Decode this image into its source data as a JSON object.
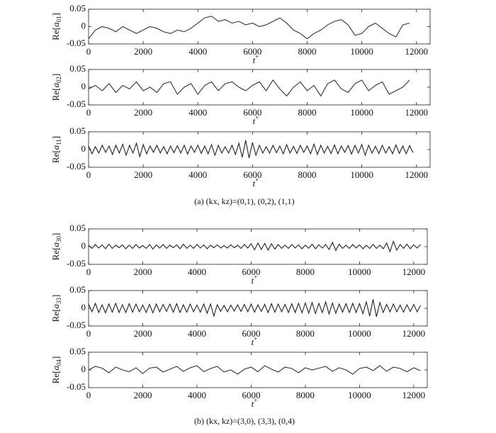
{
  "captions": [
    "(a) (kx, kz)=(0,1), (0,2), (1,1)",
    "(b) (kx, kz)=(3,0), (3,3), (0,4)"
  ],
  "chart_data": [
    {
      "type": "line",
      "ylabel": [
        "Re[",
        "a",
        "01",
        "]"
      ],
      "xlabel": [
        "t",
        "+"
      ],
      "color": "#333333",
      "xlim": [
        0,
        12500
      ],
      "ylim": [
        -0.05,
        0.05
      ],
      "xticks": [
        0,
        2000,
        4000,
        6000,
        8000,
        10000,
        12000
      ],
      "yticks": [
        -0.05,
        0,
        0.05
      ],
      "x": [
        0,
        250,
        500,
        750,
        1000,
        1250,
        1500,
        1750,
        2000,
        2250,
        2500,
        2750,
        3000,
        3250,
        3500,
        3750,
        4000,
        4250,
        4500,
        4750,
        5000,
        5250,
        5500,
        5750,
        6000,
        6250,
        6500,
        6750,
        7000,
        7250,
        7500,
        7750,
        8000,
        8250,
        8500,
        8750,
        9000,
        9250,
        9500,
        9750,
        10000,
        10250,
        10500,
        10750,
        11000,
        11250,
        11500,
        11750
      ],
      "values": [
        -0.035,
        -0.01,
        0.0,
        -0.005,
        -0.015,
        0.0,
        -0.01,
        -0.02,
        -0.01,
        0.0,
        -0.005,
        -0.015,
        -0.02,
        -0.01,
        -0.015,
        -0.005,
        0.01,
        0.025,
        0.03,
        0.015,
        0.02,
        0.01,
        0.015,
        0.005,
        0.01,
        0.0,
        0.005,
        0.015,
        0.025,
        0.01,
        -0.01,
        -0.02,
        -0.035,
        -0.02,
        -0.01,
        0.005,
        0.015,
        0.02,
        0.005,
        -0.025,
        -0.02,
        0.0,
        0.01,
        -0.005,
        -0.02,
        -0.03,
        0.005,
        0.01
      ]
    },
    {
      "type": "line",
      "ylabel": [
        "Re[",
        "a",
        "02",
        "]"
      ],
      "xlabel": [
        "t",
        "+"
      ],
      "color": "#333333",
      "xlim": [
        0,
        12500
      ],
      "ylim": [
        -0.05,
        0.05
      ],
      "xticks": [
        0,
        2000,
        4000,
        6000,
        8000,
        10000,
        12000
      ],
      "yticks": [
        -0.05,
        0,
        0.05
      ],
      "x": [
        0,
        250,
        500,
        750,
        1000,
        1250,
        1500,
        1750,
        2000,
        2250,
        2500,
        2750,
        3000,
        3250,
        3500,
        3750,
        4000,
        4250,
        4500,
        4750,
        5000,
        5250,
        5500,
        5750,
        6000,
        6250,
        6500,
        6750,
        7000,
        7250,
        7500,
        7750,
        8000,
        8250,
        8500,
        8750,
        9000,
        9250,
        9500,
        9750,
        10000,
        10250,
        10500,
        10750,
        11000,
        11250,
        11500,
        11750
      ],
      "values": [
        -0.005,
        0.005,
        -0.01,
        0.01,
        -0.015,
        0.005,
        -0.005,
        0.015,
        -0.01,
        0.0,
        -0.015,
        0.01,
        0.015,
        -0.02,
        0.0,
        0.01,
        -0.02,
        0.005,
        0.015,
        -0.01,
        0.01,
        0.015,
        0.0,
        -0.01,
        0.005,
        0.015,
        -0.01,
        0.02,
        -0.005,
        -0.025,
        0.0,
        0.015,
        -0.01,
        0.005,
        -0.025,
        0.01,
        0.02,
        -0.005,
        -0.015,
        0.01,
        0.02,
        -0.01,
        0.005,
        0.015,
        -0.02,
        -0.01,
        0.0,
        0.02
      ]
    },
    {
      "type": "line",
      "ylabel": [
        "Re[",
        "a",
        "11",
        "]"
      ],
      "xlabel": [
        "t",
        "+"
      ],
      "color": "#222222",
      "xlim": [
        0,
        12500
      ],
      "ylim": [
        -0.05,
        0.05
      ],
      "xticks": [
        0,
        2000,
        4000,
        6000,
        8000,
        10000,
        12000
      ],
      "yticks": [
        -0.05,
        0,
        0.05
      ],
      "x": [
        0,
        125,
        250,
        375,
        500,
        625,
        750,
        875,
        1000,
        1125,
        1250,
        1375,
        1500,
        1625,
        1750,
        1875,
        2000,
        2125,
        2250,
        2375,
        2500,
        2625,
        2750,
        2875,
        3000,
        3125,
        3250,
        3375,
        3500,
        3625,
        3750,
        3875,
        4000,
        4125,
        4250,
        4375,
        4500,
        4625,
        4750,
        4875,
        5000,
        5125,
        5250,
        5375,
        5500,
        5625,
        5750,
        5875,
        6000,
        6125,
        6250,
        6375,
        6500,
        6625,
        6750,
        6875,
        7000,
        7125,
        7250,
        7375,
        7500,
        7625,
        7750,
        7875,
        8000,
        8125,
        8250,
        8375,
        8500,
        8625,
        8750,
        8875,
        9000,
        9125,
        9250,
        9375,
        9500,
        9625,
        9750,
        9875,
        10000,
        10125,
        10250,
        10375,
        10500,
        10625,
        10750,
        10875,
        11000,
        11125,
        11250,
        11375,
        11500,
        11625,
        11750,
        11875
      ],
      "values": [
        0.01,
        -0.012,
        0.008,
        -0.01,
        0.012,
        -0.008,
        0.01,
        -0.014,
        0.012,
        -0.01,
        0.015,
        -0.016,
        0.012,
        -0.01,
        0.018,
        -0.02,
        0.014,
        -0.012,
        0.01,
        -0.008,
        0.012,
        -0.01,
        0.008,
        -0.012,
        0.01,
        -0.009,
        0.011,
        -0.01,
        0.012,
        -0.013,
        0.01,
        -0.008,
        0.012,
        -0.011,
        0.01,
        -0.012,
        0.014,
        -0.016,
        0.012,
        -0.01,
        0.008,
        -0.01,
        0.012,
        -0.014,
        0.018,
        -0.022,
        0.026,
        -0.024,
        0.02,
        -0.016,
        0.012,
        -0.01,
        0.008,
        -0.01,
        0.012,
        -0.009,
        0.01,
        -0.012,
        0.014,
        -0.01,
        0.009,
        -0.011,
        0.012,
        -0.008,
        0.01,
        -0.012,
        0.015,
        -0.014,
        0.012,
        -0.01,
        0.009,
        -0.011,
        0.013,
        -0.012,
        0.01,
        -0.008,
        0.011,
        -0.013,
        0.012,
        -0.01,
        0.014,
        -0.016,
        0.012,
        -0.01,
        0.009,
        -0.011,
        0.012,
        -0.01,
        0.008,
        -0.012,
        0.013,
        -0.011,
        0.01,
        -0.012,
        0.011,
        -0.009
      ]
    },
    {
      "type": "line",
      "ylabel": [
        "Re[",
        "a",
        "30",
        "]"
      ],
      "xlabel": [
        "t",
        "+"
      ],
      "color": "#222222",
      "xlim": [
        0,
        12500
      ],
      "ylim": [
        -0.05,
        0.05
      ],
      "xticks": [
        0,
        2000,
        4000,
        6000,
        8000,
        10000,
        12000
      ],
      "yticks": [
        -0.05,
        0,
        0.05
      ],
      "x": [
        0,
        125,
        250,
        375,
        500,
        625,
        750,
        875,
        1000,
        1125,
        1250,
        1375,
        1500,
        1625,
        1750,
        1875,
        2000,
        2125,
        2250,
        2375,
        2500,
        2625,
        2750,
        2875,
        3000,
        3125,
        3250,
        3375,
        3500,
        3625,
        3750,
        3875,
        4000,
        4125,
        4250,
        4375,
        4500,
        4625,
        4750,
        4875,
        5000,
        5125,
        5250,
        5375,
        5500,
        5625,
        5750,
        5875,
        6000,
        6125,
        6250,
        6375,
        6500,
        6625,
        6750,
        6875,
        7000,
        7125,
        7250,
        7375,
        7500,
        7625,
        7750,
        7875,
        8000,
        8125,
        8250,
        8375,
        8500,
        8625,
        8750,
        8875,
        9000,
        9125,
        9250,
        9375,
        9500,
        9625,
        9750,
        9875,
        10000,
        10125,
        10250,
        10375,
        10500,
        10625,
        10750,
        10875,
        11000,
        11125,
        11250,
        11375,
        11500,
        11625,
        11750,
        11875,
        12000,
        12125,
        12250
      ],
      "values": [
        0.004,
        -0.005,
        0.006,
        -0.004,
        0.005,
        -0.006,
        0.007,
        -0.005,
        0.004,
        -0.003,
        0.005,
        -0.006,
        0.004,
        -0.005,
        0.006,
        -0.004,
        0.003,
        -0.005,
        0.006,
        -0.007,
        0.005,
        -0.004,
        0.006,
        -0.005,
        0.004,
        -0.003,
        0.005,
        -0.006,
        0.007,
        -0.005,
        0.004,
        -0.005,
        0.006,
        -0.004,
        0.005,
        -0.006,
        0.004,
        -0.003,
        0.005,
        -0.004,
        0.003,
        -0.004,
        0.005,
        -0.003,
        0.004,
        -0.005,
        0.006,
        -0.004,
        0.008,
        -0.009,
        0.01,
        -0.008,
        0.009,
        -0.01,
        0.008,
        -0.007,
        0.006,
        -0.005,
        0.004,
        -0.005,
        0.006,
        -0.004,
        0.005,
        -0.006,
        0.004,
        -0.005,
        0.007,
        -0.006,
        0.005,
        -0.004,
        0.006,
        -0.008,
        0.012,
        -0.011,
        0.007,
        -0.005,
        0.004,
        -0.005,
        0.006,
        -0.004,
        0.005,
        -0.006,
        0.004,
        -0.005,
        0.006,
        -0.005,
        0.004,
        -0.006,
        0.01,
        -0.014,
        0.015,
        -0.01,
        0.006,
        -0.005,
        0.007,
        -0.006,
        0.005,
        -0.004,
        0.006
      ]
    },
    {
      "type": "line",
      "ylabel": [
        "Re[",
        "a",
        "33",
        "]"
      ],
      "xlabel": [
        "t",
        "+"
      ],
      "color": "#222222",
      "xlim": [
        0,
        12500
      ],
      "ylim": [
        -0.05,
        0.05
      ],
      "xticks": [
        0,
        2000,
        4000,
        6000,
        8000,
        10000,
        12000
      ],
      "yticks": [
        -0.05,
        0,
        0.05
      ],
      "x": [
        0,
        125,
        250,
        375,
        500,
        625,
        750,
        875,
        1000,
        1125,
        1250,
        1375,
        1500,
        1625,
        1750,
        1875,
        2000,
        2125,
        2250,
        2375,
        2500,
        2625,
        2750,
        2875,
        3000,
        3125,
        3250,
        3375,
        3500,
        3625,
        3750,
        3875,
        4000,
        4125,
        4250,
        4375,
        4500,
        4625,
        4750,
        4875,
        5000,
        5125,
        5250,
        5375,
        5500,
        5625,
        5750,
        5875,
        6000,
        6125,
        6250,
        6375,
        6500,
        6625,
        6750,
        6875,
        7000,
        7125,
        7250,
        7375,
        7500,
        7625,
        7750,
        7875,
        8000,
        8125,
        8250,
        8375,
        8500,
        8625,
        8750,
        8875,
        9000,
        9125,
        9250,
        9375,
        9500,
        9625,
        9750,
        9875,
        10000,
        10125,
        10250,
        10375,
        10500,
        10625,
        10750,
        10875,
        11000,
        11125,
        11250,
        11375,
        11500,
        11625,
        11750,
        11875,
        12000,
        12125,
        12250
      ],
      "values": [
        0.012,
        -0.01,
        0.014,
        -0.012,
        0.01,
        -0.013,
        0.012,
        -0.011,
        0.014,
        -0.012,
        0.01,
        -0.012,
        0.013,
        -0.011,
        0.012,
        -0.01,
        0.009,
        -0.012,
        0.011,
        -0.013,
        0.012,
        -0.01,
        0.011,
        -0.009,
        0.012,
        -0.011,
        0.013,
        -0.012,
        0.01,
        -0.011,
        0.012,
        -0.01,
        0.009,
        -0.011,
        0.012,
        -0.014,
        0.012,
        -0.022,
        0.01,
        -0.009,
        0.008,
        -0.01,
        0.009,
        -0.008,
        0.01,
        -0.009,
        0.011,
        -0.01,
        0.012,
        -0.011,
        0.01,
        -0.009,
        0.011,
        -0.012,
        0.013,
        -0.011,
        0.012,
        -0.01,
        0.011,
        -0.012,
        0.013,
        -0.012,
        0.014,
        -0.013,
        0.015,
        -0.014,
        0.016,
        -0.015,
        0.014,
        -0.012,
        0.018,
        -0.016,
        0.015,
        -0.014,
        0.012,
        -0.011,
        0.013,
        -0.012,
        0.014,
        -0.012,
        0.013,
        -0.015,
        0.018,
        -0.022,
        0.025,
        -0.024,
        0.016,
        -0.012,
        0.011,
        -0.01,
        0.012,
        -0.01,
        0.009,
        -0.011,
        0.01,
        -0.009,
        0.011,
        -0.01,
        0.008
      ]
    },
    {
      "type": "line",
      "ylabel": [
        "Re[",
        "a",
        "04",
        "]"
      ],
      "xlabel": [
        "t",
        "+"
      ],
      "color": "#333333",
      "xlim": [
        0,
        12500
      ],
      "ylim": [
        -0.05,
        0.05
      ],
      "xticks": [
        0,
        2000,
        4000,
        6000,
        8000,
        10000,
        12000
      ],
      "yticks": [
        -0.05,
        0,
        0.05
      ],
      "x": [
        0,
        250,
        500,
        750,
        1000,
        1250,
        1500,
        1750,
        2000,
        2250,
        2500,
        2750,
        3000,
        3250,
        3500,
        3750,
        4000,
        4250,
        4500,
        4750,
        5000,
        5250,
        5500,
        5750,
        6000,
        6250,
        6500,
        6750,
        7000,
        7250,
        7500,
        7750,
        8000,
        8250,
        8500,
        8750,
        9000,
        9250,
        9500,
        9750,
        10000,
        10250,
        10500,
        10750,
        11000,
        11250,
        11500,
        11750,
        12000,
        12250
      ],
      "values": [
        0.0,
        0.01,
        0.005,
        -0.008,
        0.008,
        0.0,
        -0.005,
        0.006,
        -0.01,
        0.005,
        0.008,
        -0.006,
        0.002,
        0.01,
        -0.004,
        0.006,
        0.012,
        -0.005,
        0.004,
        0.01,
        -0.006,
        0.0,
        -0.012,
        0.002,
        0.008,
        -0.005,
        0.012,
        0.002,
        -0.006,
        0.008,
        0.004,
        -0.008,
        0.006,
        0.0,
        0.005,
        0.01,
        -0.004,
        0.006,
        0.0,
        -0.012,
        0.004,
        0.008,
        -0.002,
        0.012,
        -0.004,
        0.008,
        0.004,
        -0.005,
        0.006,
        -0.002
      ]
    }
  ]
}
